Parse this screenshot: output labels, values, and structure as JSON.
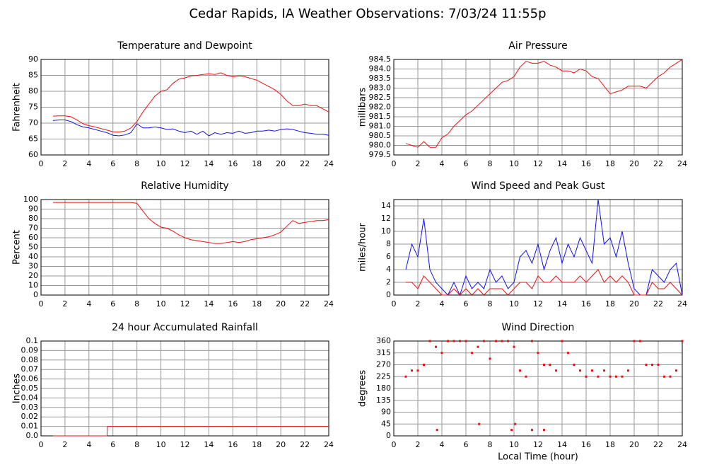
{
  "title": "Cedar Rapids, IA Weather Observations: 7/03/24 11:55p",
  "chart_data": [
    {
      "type": "line",
      "title": "Temperature and Dewpoint",
      "ylabel": "Fahrenheit",
      "xlim": [
        0,
        24
      ],
      "xticks": [
        0,
        2,
        4,
        6,
        8,
        10,
        12,
        14,
        16,
        18,
        20,
        22,
        24
      ],
      "ylim": [
        60,
        90
      ],
      "yticks": [
        60,
        65,
        70,
        75,
        80,
        85,
        90
      ],
      "grid": true,
      "x": [
        1,
        1.5,
        2,
        2.5,
        3,
        3.5,
        4,
        4.5,
        5,
        5.5,
        6,
        6.5,
        7,
        7.5,
        8,
        8.5,
        9,
        9.5,
        10,
        10.5,
        11,
        11.5,
        12,
        12.5,
        13,
        13.5,
        14,
        14.5,
        15,
        15.5,
        16,
        16.5,
        17,
        17.5,
        18,
        18.5,
        19,
        19.5,
        20,
        20.5,
        21,
        21.5,
        22,
        22.5,
        23,
        23.5,
        24
      ],
      "series": [
        {
          "color": "#ee1111",
          "values": [
            72.2,
            72.3,
            72.3,
            72,
            71,
            69.8,
            69.2,
            68.8,
            68.3,
            67.8,
            67.3,
            67.2,
            67.5,
            68.5,
            70.5,
            73.5,
            76,
            78.5,
            80,
            80.5,
            82.5,
            83.8,
            84.2,
            84.8,
            85,
            85.3,
            85.5,
            85.3,
            85.8,
            85,
            84.5,
            84.8,
            84.6,
            84,
            83.5,
            82.5,
            81.5,
            80.5,
            79,
            77,
            75.5,
            75.5,
            76,
            75.5,
            75.5,
            74.5,
            73.5
          ]
        },
        {
          "color": "#1111ee",
          "values": [
            70.8,
            71,
            71,
            70.5,
            69.5,
            68.8,
            68.5,
            68,
            67.5,
            67,
            66.2,
            66,
            66.3,
            67,
            69.8,
            68.5,
            68.5,
            68.8,
            68.5,
            68,
            68.2,
            67.5,
            67,
            67.5,
            66.5,
            67.5,
            66,
            67,
            66.5,
            67,
            66.8,
            67.5,
            66.8,
            67,
            67.5,
            67.5,
            67.8,
            67.5,
            68,
            68.2,
            68,
            67.5,
            67,
            66.8,
            66.5,
            66.5,
            66.2
          ]
        }
      ]
    },
    {
      "type": "line",
      "title": "Air Pressure",
      "ylabel": "millibars",
      "xlim": [
        0,
        24
      ],
      "xticks": [
        0,
        2,
        4,
        6,
        8,
        10,
        12,
        14,
        16,
        18,
        20,
        22,
        24
      ],
      "ylim": [
        979.5,
        984.5
      ],
      "yticks": [
        979.5,
        {
          "value": 980,
          "label": "980.0"
        },
        980.5,
        {
          "value": 981,
          "label": "981.0"
        },
        981.5,
        {
          "value": 982,
          "label": "982.0"
        },
        982.5,
        {
          "value": 983,
          "label": "983.0"
        },
        983.5,
        {
          "value": 984,
          "label": "984.0"
        },
        984.5
      ],
      "grid": true,
      "x": [
        1,
        1.5,
        2,
        2.5,
        3,
        3.5,
        4,
        4.5,
        5,
        5.5,
        6,
        6.5,
        7,
        7.5,
        8,
        8.5,
        9,
        9.5,
        10,
        10.5,
        11,
        11.5,
        12,
        12.5,
        13,
        13.5,
        14,
        14.5,
        15,
        15.5,
        16,
        16.5,
        17,
        17.5,
        18,
        18.5,
        19,
        19.5,
        20,
        20.5,
        21,
        21.5,
        22,
        22.5,
        23,
        23.5,
        24
      ],
      "series": [
        {
          "color": "#ee1111",
          "values": [
            980.1,
            980,
            979.9,
            980.2,
            979.9,
            979.9,
            980.4,
            980.6,
            981,
            981.3,
            981.6,
            981.8,
            982.1,
            982.4,
            982.7,
            983,
            983.3,
            983.4,
            983.6,
            984.1,
            984.4,
            984.3,
            984.3,
            984.4,
            984.2,
            984.1,
            983.9,
            983.9,
            983.8,
            984,
            983.9,
            983.6,
            983.5,
            983.1,
            982.7,
            982.8,
            982.9,
            983.1,
            983.1,
            983.1,
            983,
            983.3,
            983.6,
            983.8,
            984.1,
            984.3,
            984.5
          ]
        }
      ]
    },
    {
      "type": "line",
      "title": "Relative Humidity",
      "ylabel": "Percent",
      "xlim": [
        0,
        24
      ],
      "xticks": [
        0,
        2,
        4,
        6,
        8,
        10,
        12,
        14,
        16,
        18,
        20,
        22,
        24
      ],
      "ylim": [
        0,
        100
      ],
      "yticks": [
        0,
        10,
        20,
        30,
        40,
        50,
        60,
        70,
        80,
        90,
        100
      ],
      "grid": true,
      "x": [
        1,
        1.5,
        2,
        2.5,
        3,
        3.5,
        4,
        4.5,
        5,
        5.5,
        6,
        6.5,
        7,
        7.5,
        8,
        8.5,
        9,
        9.5,
        10,
        10.5,
        11,
        11.5,
        12,
        12.5,
        13,
        13.5,
        14,
        14.5,
        15,
        15.5,
        16,
        16.5,
        17,
        17.5,
        18,
        18.5,
        19,
        19.5,
        20,
        20.5,
        21,
        21.5,
        22,
        22.5,
        23,
        23.5,
        24
      ],
      "series": [
        {
          "color": "#ee1111",
          "values": [
            97,
            97,
            97,
            97,
            97,
            97,
            97,
            97,
            97,
            97,
            97,
            97,
            97,
            97,
            96,
            88,
            80,
            75,
            71,
            70,
            67,
            63,
            60,
            58,
            57,
            56,
            55,
            54,
            54,
            55,
            56,
            55,
            56,
            58,
            59,
            60,
            61,
            63,
            66,
            72,
            78,
            75,
            76,
            77,
            78,
            78,
            79
          ]
        }
      ]
    },
    {
      "type": "line",
      "title": "Wind Speed and Peak Gust",
      "ylabel": "miles/hour",
      "xlim": [
        0,
        24
      ],
      "xticks": [
        0,
        2,
        4,
        6,
        8,
        10,
        12,
        14,
        16,
        18,
        20,
        22,
        24
      ],
      "ylim": [
        0,
        15
      ],
      "yticks": [
        0,
        2,
        4,
        6,
        8,
        10,
        12,
        14
      ],
      "grid": true,
      "x": [
        1,
        1.5,
        2,
        2.5,
        3,
        3.5,
        4,
        4.5,
        5,
        5.5,
        6,
        6.5,
        7,
        7.5,
        8,
        8.5,
        9,
        9.5,
        10,
        10.5,
        11,
        11.5,
        12,
        12.5,
        13,
        13.5,
        14,
        14.5,
        15,
        15.5,
        16,
        16.5,
        17,
        17.5,
        18,
        18.5,
        19,
        19.5,
        20,
        20.5,
        21,
        21.5,
        22,
        22.5,
        23,
        23.5,
        24
      ],
      "series": [
        {
          "color": "#1111ee",
          "values": [
            4,
            8,
            6,
            12,
            4,
            2,
            1,
            0,
            2,
            0,
            3,
            1,
            2,
            1,
            4,
            2,
            3,
            1,
            2,
            6,
            7,
            5,
            8,
            4,
            7,
            9,
            5,
            8,
            6,
            9,
            7,
            5,
            15,
            8,
            9,
            6,
            10,
            5,
            1,
            0,
            0,
            4,
            3,
            2,
            4,
            5,
            0
          ]
        },
        {
          "color": "#ee1111",
          "values": [
            2,
            2,
            1,
            3,
            2,
            1,
            0,
            0,
            1,
            0,
            1,
            0,
            1,
            0,
            1,
            1,
            1,
            0,
            1,
            2,
            2,
            1,
            3,
            2,
            2,
            3,
            2,
            2,
            2,
            3,
            2,
            3,
            4,
            2,
            3,
            2,
            3,
            2,
            0,
            0,
            0,
            2,
            1,
            1,
            2,
            1,
            0
          ]
        }
      ]
    },
    {
      "type": "line",
      "title": "24 hour Accumulated Rainfall",
      "ylabel": "Inches",
      "xlim": [
        0,
        24
      ],
      "xticks": [
        0,
        2,
        4,
        6,
        8,
        10,
        12,
        14,
        16,
        18,
        20,
        22,
        24
      ],
      "ylim": [
        0,
        0.1
      ],
      "yticks": [
        {
          "value": 0,
          "label": "0.0"
        },
        0.01,
        0.02,
        0.03,
        0.04,
        0.05,
        0.06,
        0.07,
        0.08,
        0.09,
        0.1
      ],
      "grid": true,
      "x": [
        1,
        5.5,
        5.55,
        24
      ],
      "series": [
        {
          "color": "#ee1111",
          "values": [
            0,
            0,
            0.01,
            0.01
          ]
        }
      ]
    },
    {
      "type": "scatter",
      "title": "Wind Direction",
      "ylabel": "degrees",
      "xlabel": "Local Time (hour)",
      "xlim": [
        0,
        24
      ],
      "xticks": [
        0,
        2,
        4,
        6,
        8,
        10,
        12,
        14,
        16,
        18,
        20,
        22,
        24
      ],
      "ylim": [
        0,
        360
      ],
      "yticks": [
        0,
        45,
        90,
        135,
        180,
        225,
        270,
        315,
        360
      ],
      "grid": true,
      "x": [
        1,
        1.5,
        2,
        2.5,
        3,
        3.5,
        4,
        4.5,
        5,
        5.5,
        6,
        6.5,
        7,
        7.5,
        8,
        8.5,
        9,
        9.5,
        10,
        10.5,
        11,
        11.5,
        12,
        12.5,
        13,
        13.5,
        14,
        14.5,
        15,
        15.5,
        16,
        16.5,
        17,
        17.5,
        18,
        18.5,
        19,
        19.5,
        20,
        20.5,
        21,
        21.5,
        22,
        22.5,
        23,
        23.5,
        24,
        3.6,
        7.1,
        9.8,
        10.1,
        11.5,
        12.5
      ],
      "series": [
        {
          "color": "#ee1111",
          "values": [
            225,
            248,
            248,
            270,
            360,
            338,
            315,
            360,
            360,
            360,
            360,
            315,
            338,
            360,
            293,
            360,
            360,
            360,
            338,
            248,
            225,
            360,
            315,
            270,
            270,
            248,
            360,
            315,
            270,
            248,
            225,
            248,
            225,
            248,
            225,
            225,
            225,
            248,
            360,
            360,
            270,
            270,
            270,
            225,
            225,
            248,
            360,
            22.5,
            45,
            22.5,
            45,
            22.5,
            22.5
          ]
        }
      ]
    }
  ]
}
